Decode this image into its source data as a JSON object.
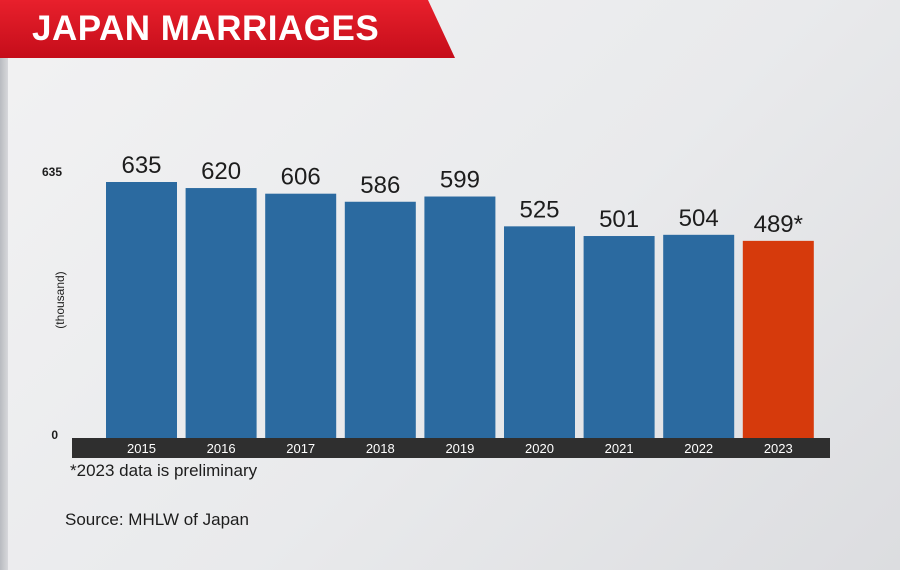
{
  "header": {
    "title": "JAPAN MARRIAGES"
  },
  "colors": {
    "banner": "#d2141f",
    "bar": "#2b6aa0",
    "highlight_bar": "#d63a0c",
    "axis_band": "#2f2f2f"
  },
  "chart_data": {
    "type": "bar",
    "title": "",
    "xlabel": "",
    "ylabel": "(thousand)",
    "ylim": [
      0,
      635
    ],
    "yticks": [
      "0",
      "635"
    ],
    "categories": [
      "2015",
      "2016",
      "2017",
      "2018",
      "2019",
      "2020",
      "2021",
      "2022",
      "2023"
    ],
    "values": [
      635,
      620,
      606,
      586,
      599,
      525,
      501,
      504,
      489
    ],
    "labels": [
      "635",
      "620",
      "606",
      "586",
      "599",
      "525",
      "501",
      "504",
      "489*"
    ],
    "highlight_index": 8,
    "grid": false
  },
  "footnote": "*2023 data is preliminary",
  "source": "Source: MHLW of Japan"
}
